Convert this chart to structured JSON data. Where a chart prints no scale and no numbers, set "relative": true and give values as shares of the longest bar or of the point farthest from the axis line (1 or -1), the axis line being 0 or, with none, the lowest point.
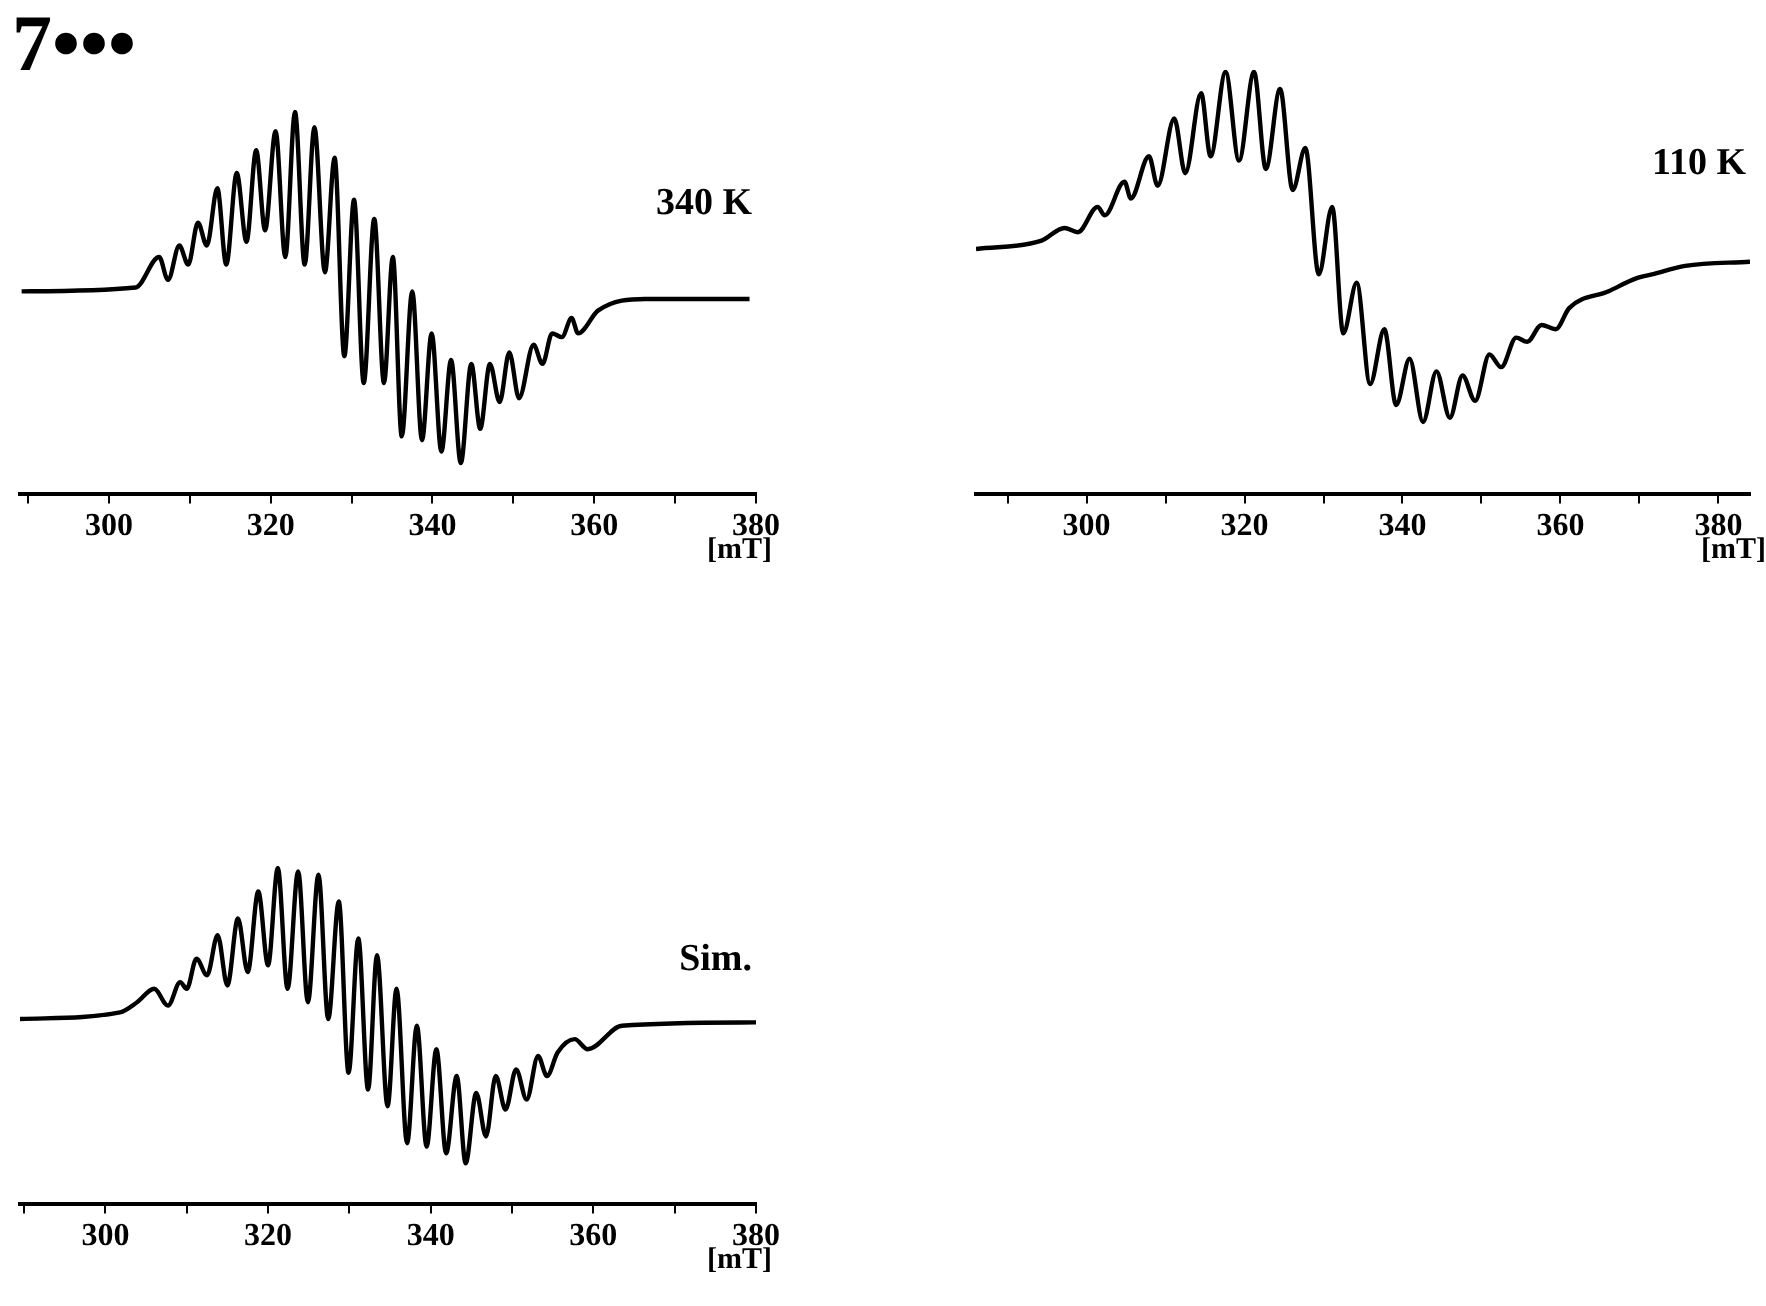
{
  "chart_data": [
    {
      "type": "line",
      "title": "7•••",
      "annotations": [
        "340 K"
      ],
      "xlabel": "[mT]",
      "relative": true,
      "tick_labels": "x",
      "color": "#000000",
      "xlim": [
        289,
        380
      ],
      "xticks": [
        {
          "value": 290,
          "label": null
        },
        300,
        {
          "value": 310,
          "label": null
        },
        320,
        {
          "value": 330,
          "label": null
        },
        340,
        {
          "value": 350,
          "label": null
        },
        360,
        {
          "value": 370,
          "label": null
        },
        380
      ],
      "x": [
        289.2,
        303.3,
        306.2,
        307.3,
        308.7,
        309.8,
        311.0,
        312.1,
        313.4,
        314.5,
        315.8,
        317.0,
        318.2,
        319.3,
        320.6,
        321.8,
        323.0,
        324.2,
        325.4,
        326.7,
        327.9,
        329.1,
        330.3,
        331.5,
        332.8,
        334.0,
        335.1,
        336.2,
        337.5,
        338.7,
        339.9,
        341.1,
        342.3,
        343.5,
        344.8,
        345.9,
        347.1,
        348.3,
        349.5,
        350.7,
        352.5,
        353.6,
        354.8,
        356.0,
        357.2,
        358.0,
        360.5,
        366.3,
        379.2
      ],
      "values": [
        0.53,
        0.54,
        0.62,
        0.56,
        0.65,
        0.6,
        0.71,
        0.65,
        0.8,
        0.6,
        0.84,
        0.66,
        0.9,
        0.69,
        0.95,
        0.62,
        1.0,
        0.6,
        0.96,
        0.58,
        0.88,
        0.36,
        0.77,
        0.29,
        0.72,
        0.29,
        0.62,
        0.15,
        0.53,
        0.14,
        0.42,
        0.11,
        0.35,
        0.08,
        0.34,
        0.17,
        0.34,
        0.24,
        0.37,
        0.25,
        0.39,
        0.34,
        0.42,
        0.41,
        0.46,
        0.42,
        0.48,
        0.51,
        0.51
      ]
    },
    {
      "type": "line",
      "annotations": [
        "110 K"
      ],
      "xlabel": "[mT]",
      "relative": true,
      "tick_labels": "x",
      "color": "#000000",
      "xlim": [
        286,
        384
      ],
      "xticks": [
        {
          "value": 290,
          "label": null
        },
        300,
        {
          "value": 310,
          "label": null
        },
        320,
        {
          "value": 330,
          "label": null
        },
        340,
        {
          "value": 350,
          "label": null
        },
        360,
        {
          "value": 370,
          "label": null
        },
        380
      ],
      "x": [
        286.0,
        294.3,
        297.2,
        298.9,
        301.4,
        302.3,
        304.8,
        305.6,
        307.9,
        309.0,
        311.1,
        312.5,
        314.5,
        315.7,
        317.6,
        319.3,
        321.2,
        322.7,
        324.5,
        326.1,
        327.7,
        329.4,
        331.1,
        332.5,
        334.2,
        335.9,
        337.7,
        339.2,
        340.9,
        342.6,
        344.3,
        346.0,
        347.6,
        349.2,
        351.0,
        352.5,
        354.4,
        355.8,
        357.6,
        359.4,
        361.1,
        366.1,
        369.5,
        371.6,
        375.8,
        384.0
      ],
      "values": [
        0.58,
        0.6,
        0.63,
        0.62,
        0.68,
        0.66,
        0.74,
        0.7,
        0.8,
        0.73,
        0.89,
        0.76,
        0.95,
        0.8,
        1.0,
        0.79,
        1.0,
        0.77,
        0.96,
        0.72,
        0.82,
        0.52,
        0.68,
        0.38,
        0.5,
        0.26,
        0.39,
        0.21,
        0.32,
        0.17,
        0.29,
        0.18,
        0.28,
        0.22,
        0.33,
        0.3,
        0.37,
        0.36,
        0.4,
        0.39,
        0.44,
        0.48,
        0.51,
        0.52,
        0.54,
        0.55
      ]
    },
    {
      "type": "line",
      "annotations": [
        "Sim."
      ],
      "xlabel": "[mT]",
      "relative": true,
      "tick_labels": "x",
      "color": "#000000",
      "xlim": [
        289.5,
        380
      ],
      "xticks": [
        {
          "value": 290,
          "label": null
        },
        300,
        {
          "value": 310,
          "label": null
        },
        320,
        {
          "value": 330,
          "label": null
        },
        340,
        {
          "value": 350,
          "label": null
        },
        360,
        {
          "value": 370,
          "label": null
        },
        380
      ],
      "x": [
        289.5,
        301.8,
        303.9,
        306.0,
        307.7,
        309.2,
        310.0,
        311.2,
        312.5,
        313.8,
        315.0,
        316.3,
        317.5,
        318.8,
        320.0,
        321.2,
        322.4,
        323.7,
        324.9,
        326.2,
        327.4,
        328.7,
        329.9,
        331.1,
        332.3,
        333.4,
        334.7,
        335.8,
        337.1,
        338.3,
        339.5,
        340.7,
        341.9,
        343.2,
        344.3,
        345.6,
        346.8,
        348.0,
        349.2,
        350.5,
        351.8,
        353.2,
        354.3,
        355.6,
        357.7,
        359.3,
        363.5,
        380.0
      ],
      "values": [
        0.55,
        0.57,
        0.6,
        0.64,
        0.59,
        0.66,
        0.64,
        0.73,
        0.68,
        0.8,
        0.65,
        0.85,
        0.69,
        0.93,
        0.71,
        1.0,
        0.64,
        0.99,
        0.6,
        0.98,
        0.55,
        0.9,
        0.39,
        0.79,
        0.34,
        0.74,
        0.29,
        0.64,
        0.18,
        0.53,
        0.17,
        0.46,
        0.15,
        0.38,
        0.12,
        0.33,
        0.2,
        0.38,
        0.28,
        0.4,
        0.31,
        0.44,
        0.38,
        0.45,
        0.49,
        0.46,
        0.53,
        0.54
      ]
    }
  ]
}
